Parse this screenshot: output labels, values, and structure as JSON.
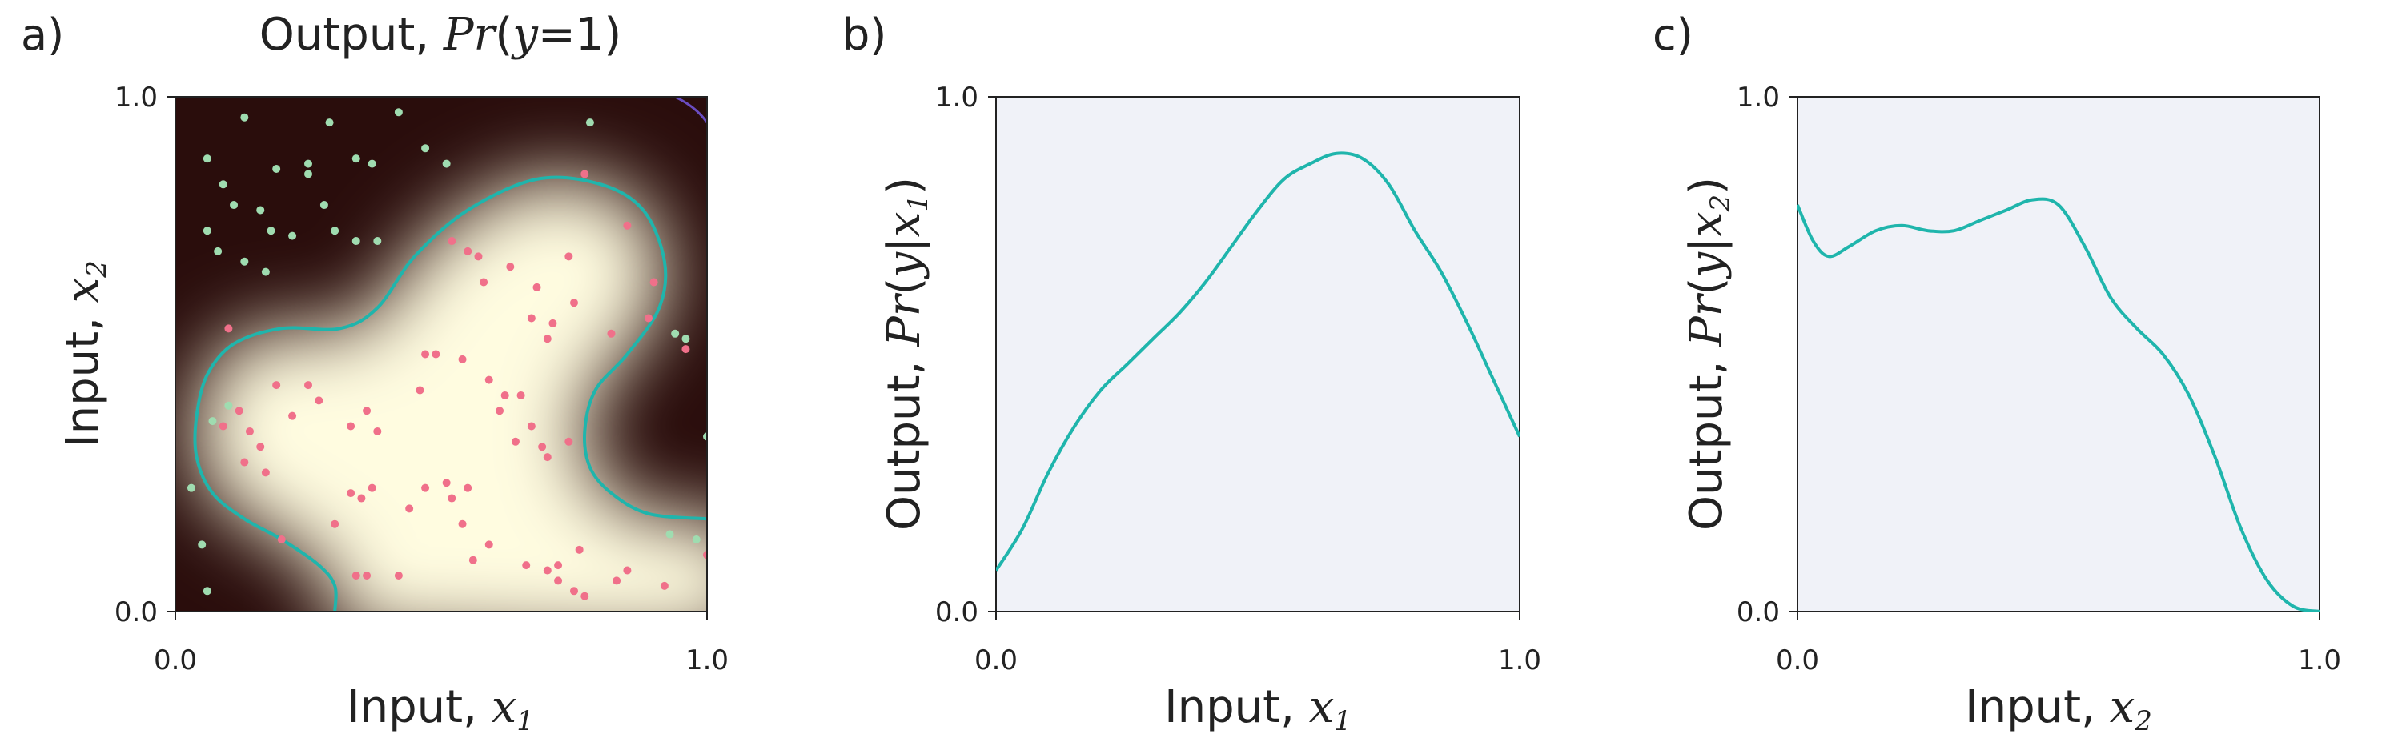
{
  "panels": [
    {
      "letter": "a)",
      "title": {
        "prefix": "Output, ",
        "math": "Pr",
        "open": "(",
        "y": "y",
        "eq": "=1",
        "close": ")"
      },
      "xlabel": {
        "text": "Input, ",
        "var": "x",
        "sub": "1"
      },
      "ylabel": {
        "text": "Input,  ",
        "var": "x",
        "sub": "2"
      },
      "xticks": [
        "0.0",
        "1.0"
      ],
      "yticks": [
        "0.0",
        "1.0"
      ]
    },
    {
      "letter": "b)",
      "xlabel": {
        "text": "Input, ",
        "var": "x",
        "sub": "1"
      },
      "ylabel": {
        "text": "Output, ",
        "math": "Pr",
        "open": "(",
        "y": "y",
        "bar": "|",
        "var": "x",
        "sub": "1",
        "close": ")"
      },
      "xticks": [
        "0.0",
        "1.0"
      ],
      "yticks": [
        "0.0",
        "1.0"
      ]
    },
    {
      "letter": "c)",
      "xlabel": {
        "text": "Input, ",
        "var": "x",
        "sub": "2"
      },
      "ylabel": {
        "text": "Output, ",
        "math": "Pr",
        "open": "(",
        "y": "y",
        "bar": "|",
        "var": "x",
        "sub": "2",
        "close": ")"
      },
      "xticks": [
        "0.0",
        "1.0"
      ],
      "yticks": [
        "0.0",
        "1.0"
      ]
    }
  ],
  "colors": {
    "curve": "#1fb5ac",
    "class1_point": "#f0708a",
    "class0_point": "#9fdcb0",
    "plot_bg": "#f0f2f8",
    "heat_low": "#2a0d0c",
    "heat_high": "#fffce0",
    "corner_contour": "#6a4cc0"
  },
  "chart_data": [
    {
      "type": "heatmap",
      "title": "Output, Pr(y=1)",
      "xlabel": "Input, x1",
      "ylabel": "Input, x2",
      "xlim": [
        0,
        1
      ],
      "ylim": [
        0,
        1
      ],
      "colormap": "dark brown (0) to cream (1)",
      "decision_boundary_contour": [
        [
          0.3,
          0.0
        ],
        [
          0.3,
          0.05
        ],
        [
          0.27,
          0.09
        ],
        [
          0.2,
          0.14
        ],
        [
          0.13,
          0.18
        ],
        [
          0.07,
          0.23
        ],
        [
          0.04,
          0.3
        ],
        [
          0.04,
          0.38
        ],
        [
          0.06,
          0.46
        ],
        [
          0.11,
          0.52
        ],
        [
          0.2,
          0.55
        ],
        [
          0.31,
          0.55
        ],
        [
          0.38,
          0.59
        ],
        [
          0.45,
          0.69
        ],
        [
          0.55,
          0.78
        ],
        [
          0.68,
          0.84
        ],
        [
          0.8,
          0.83
        ],
        [
          0.88,
          0.78
        ],
        [
          0.92,
          0.68
        ],
        [
          0.91,
          0.59
        ],
        [
          0.85,
          0.5
        ],
        [
          0.79,
          0.43
        ],
        [
          0.77,
          0.35
        ],
        [
          0.78,
          0.28
        ],
        [
          0.82,
          0.23
        ],
        [
          0.89,
          0.19
        ],
        [
          1.0,
          0.18
        ]
      ],
      "class1_points": [
        [
          0.52,
          0.72
        ],
        [
          0.55,
          0.7
        ],
        [
          0.57,
          0.69
        ],
        [
          0.58,
          0.64
        ],
        [
          0.63,
          0.67
        ],
        [
          0.68,
          0.63
        ],
        [
          0.74,
          0.69
        ],
        [
          0.75,
          0.6
        ],
        [
          0.85,
          0.75
        ],
        [
          0.77,
          0.85
        ],
        [
          0.67,
          0.57
        ],
        [
          0.71,
          0.56
        ],
        [
          0.7,
          0.53
        ],
        [
          0.9,
          0.64
        ],
        [
          0.82,
          0.54
        ],
        [
          0.96,
          0.51
        ],
        [
          0.54,
          0.49
        ],
        [
          0.47,
          0.5
        ],
        [
          0.49,
          0.5
        ],
        [
          0.46,
          0.43
        ],
        [
          0.59,
          0.45
        ],
        [
          0.62,
          0.42
        ],
        [
          0.65,
          0.42
        ],
        [
          0.61,
          0.39
        ],
        [
          0.67,
          0.36
        ],
        [
          0.64,
          0.33
        ],
        [
          0.69,
          0.32
        ],
        [
          0.7,
          0.3
        ],
        [
          0.74,
          0.33
        ],
        [
          0.89,
          0.57
        ],
        [
          0.19,
          0.44
        ],
        [
          0.25,
          0.44
        ],
        [
          0.22,
          0.38
        ],
        [
          0.27,
          0.41
        ],
        [
          0.09,
          0.36
        ],
        [
          0.12,
          0.39
        ],
        [
          0.14,
          0.35
        ],
        [
          0.16,
          0.32
        ],
        [
          0.13,
          0.29
        ],
        [
          0.17,
          0.27
        ],
        [
          0.33,
          0.36
        ],
        [
          0.36,
          0.39
        ],
        [
          0.38,
          0.35
        ],
        [
          0.37,
          0.24
        ],
        [
          0.33,
          0.23
        ],
        [
          0.35,
          0.22
        ],
        [
          0.3,
          0.17
        ],
        [
          0.47,
          0.24
        ],
        [
          0.51,
          0.25
        ],
        [
          0.55,
          0.24
        ],
        [
          0.52,
          0.22
        ],
        [
          0.54,
          0.17
        ],
        [
          0.44,
          0.2
        ],
        [
          0.56,
          0.1
        ],
        [
          0.59,
          0.13
        ],
        [
          0.66,
          0.09
        ],
        [
          0.7,
          0.08
        ],
        [
          0.72,
          0.06
        ],
        [
          0.75,
          0.04
        ],
        [
          0.83,
          0.06
        ],
        [
          0.85,
          0.08
        ],
        [
          0.92,
          0.05
        ],
        [
          0.77,
          0.03
        ],
        [
          0.36,
          0.07
        ],
        [
          0.34,
          0.07
        ],
        [
          0.2,
          0.14
        ],
        [
          0.1,
          0.55
        ],
        [
          0.42,
          0.07
        ],
        [
          0.72,
          0.09
        ],
        [
          0.76,
          0.12
        ],
        [
          1.0,
          0.11
        ]
      ],
      "class0_points": [
        [
          0.06,
          0.88
        ],
        [
          0.13,
          0.96
        ],
        [
          0.29,
          0.95
        ],
        [
          0.42,
          0.97
        ],
        [
          0.78,
          0.95
        ],
        [
          0.09,
          0.83
        ],
        [
          0.11,
          0.79
        ],
        [
          0.25,
          0.87
        ],
        [
          0.25,
          0.85
        ],
        [
          0.34,
          0.88
        ],
        [
          0.37,
          0.87
        ],
        [
          0.47,
          0.9
        ],
        [
          0.51,
          0.87
        ],
        [
          0.19,
          0.86
        ],
        [
          0.06,
          0.74
        ],
        [
          0.08,
          0.7
        ],
        [
          0.16,
          0.78
        ],
        [
          0.18,
          0.74
        ],
        [
          0.22,
          0.73
        ],
        [
          0.28,
          0.79
        ],
        [
          0.3,
          0.74
        ],
        [
          0.34,
          0.72
        ],
        [
          0.38,
          0.72
        ],
        [
          0.17,
          0.66
        ],
        [
          0.13,
          0.68
        ],
        [
          0.1,
          0.4
        ],
        [
          0.07,
          0.37
        ],
        [
          0.03,
          0.24
        ],
        [
          0.05,
          0.13
        ],
        [
          0.06,
          0.04
        ],
        [
          0.94,
          0.54
        ],
        [
          0.96,
          0.53
        ],
        [
          0.98,
          0.14
        ],
        [
          0.93,
          0.15
        ],
        [
          1.0,
          0.34
        ]
      ]
    },
    {
      "type": "line",
      "xlabel": "Input, x1",
      "ylabel": "Output, Pr(y|x1)",
      "xlim": [
        0,
        1
      ],
      "ylim": [
        0,
        1
      ],
      "x": [
        0.0,
        0.05,
        0.1,
        0.15,
        0.2,
        0.25,
        0.3,
        0.35,
        0.4,
        0.45,
        0.5,
        0.55,
        0.6,
        0.65,
        0.7,
        0.75,
        0.8,
        0.85,
        0.9,
        0.95,
        1.0
      ],
      "y": [
        0.08,
        0.16,
        0.27,
        0.36,
        0.43,
        0.48,
        0.53,
        0.58,
        0.64,
        0.71,
        0.78,
        0.84,
        0.87,
        0.89,
        0.88,
        0.83,
        0.74,
        0.66,
        0.56,
        0.45,
        0.34
      ]
    },
    {
      "type": "line",
      "xlabel": "Input, x2",
      "ylabel": "Output, Pr(y|x2)",
      "xlim": [
        0,
        1
      ],
      "ylim": [
        0,
        1
      ],
      "x": [
        0.0,
        0.03,
        0.06,
        0.1,
        0.15,
        0.2,
        0.25,
        0.3,
        0.35,
        0.4,
        0.45,
        0.5,
        0.55,
        0.6,
        0.65,
        0.7,
        0.75,
        0.8,
        0.85,
        0.9,
        0.95,
        1.0
      ],
      "y": [
        0.79,
        0.72,
        0.69,
        0.71,
        0.74,
        0.75,
        0.74,
        0.74,
        0.76,
        0.78,
        0.8,
        0.79,
        0.71,
        0.61,
        0.55,
        0.5,
        0.42,
        0.3,
        0.16,
        0.06,
        0.01,
        0.0
      ]
    }
  ]
}
